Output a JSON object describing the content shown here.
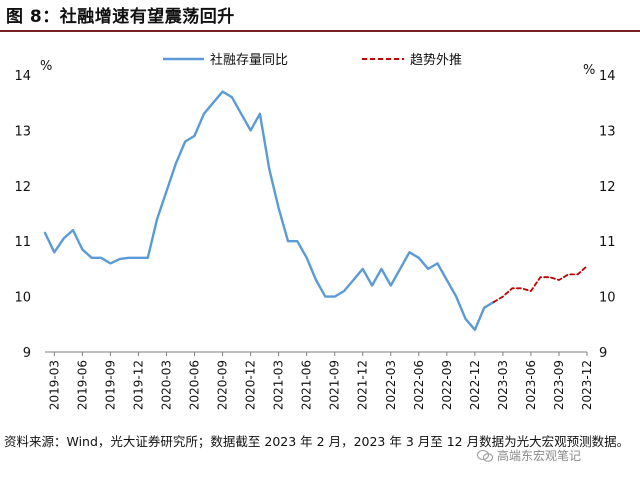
{
  "figure": {
    "title": "图 8：社融增速有望震荡回升",
    "source": "资料来源：Wind，光大证券研究所；数据截至 2023 年 2 月，2023 年 3 月至 12 月数据为光大宏观预测数据。",
    "watermark": "高端东宏观笔记"
  },
  "colors": {
    "actual": "#5b9bd5",
    "forecast": "#c00000",
    "title_rule": "#7a1f1f"
  },
  "chart_data": {
    "type": "line",
    "title": "",
    "ylabel_left": "%",
    "ylabel_right": "%",
    "ylim": [
      9,
      14
    ],
    "yticks": [
      9,
      10,
      11,
      12,
      13,
      14
    ],
    "xtick_labels": [
      "2019-03",
      "2019-06",
      "2019-09",
      "2019-12",
      "2020-03",
      "2020-06",
      "2020-09",
      "2020-12",
      "2021-03",
      "2021-06",
      "2021-09",
      "2021-12",
      "2022-03",
      "2022-06",
      "2022-09",
      "2022-12",
      "2023-03",
      "2023-06",
      "2023-09",
      "2023-12"
    ],
    "legend_position": "top-center",
    "series": [
      {
        "name": "社融存量同比",
        "style": "solid",
        "x": [
          "2019-02",
          "2019-03",
          "2019-04",
          "2019-05",
          "2019-06",
          "2019-07",
          "2019-08",
          "2019-09",
          "2019-10",
          "2019-11",
          "2019-12",
          "2020-01",
          "2020-02",
          "2020-03",
          "2020-04",
          "2020-05",
          "2020-06",
          "2020-07",
          "2020-08",
          "2020-09",
          "2020-10",
          "2020-11",
          "2020-12",
          "2021-01",
          "2021-02",
          "2021-03",
          "2021-04",
          "2021-05",
          "2021-06",
          "2021-07",
          "2021-08",
          "2021-09",
          "2021-10",
          "2021-11",
          "2021-12",
          "2022-01",
          "2022-02",
          "2022-03",
          "2022-04",
          "2022-05",
          "2022-06",
          "2022-07",
          "2022-08",
          "2022-09",
          "2022-10",
          "2022-11",
          "2022-12",
          "2023-01",
          "2023-02"
        ],
        "values": [
          11.15,
          10.8,
          11.05,
          11.2,
          10.85,
          10.7,
          10.7,
          10.6,
          10.68,
          10.7,
          10.7,
          10.7,
          11.4,
          11.9,
          12.4,
          12.8,
          12.9,
          13.3,
          13.5,
          13.7,
          13.6,
          13.3,
          13.0,
          13.3,
          12.3,
          11.6,
          11.0,
          11.0,
          10.7,
          10.3,
          10.0,
          10.0,
          10.1,
          10.3,
          10.5,
          10.2,
          10.5,
          10.2,
          10.5,
          10.8,
          10.7,
          10.5,
          10.6,
          10.3,
          10.0,
          9.6,
          9.4,
          9.8,
          9.9
        ]
      },
      {
        "name": "趋势外推",
        "style": "dashed",
        "x": [
          "2023-02",
          "2023-03",
          "2023-04",
          "2023-05",
          "2023-06",
          "2023-07",
          "2023-08",
          "2023-09",
          "2023-10",
          "2023-11",
          "2023-12"
        ],
        "values": [
          9.9,
          10.0,
          10.15,
          10.15,
          10.1,
          10.35,
          10.35,
          10.3,
          10.4,
          10.4,
          10.55
        ]
      }
    ]
  }
}
